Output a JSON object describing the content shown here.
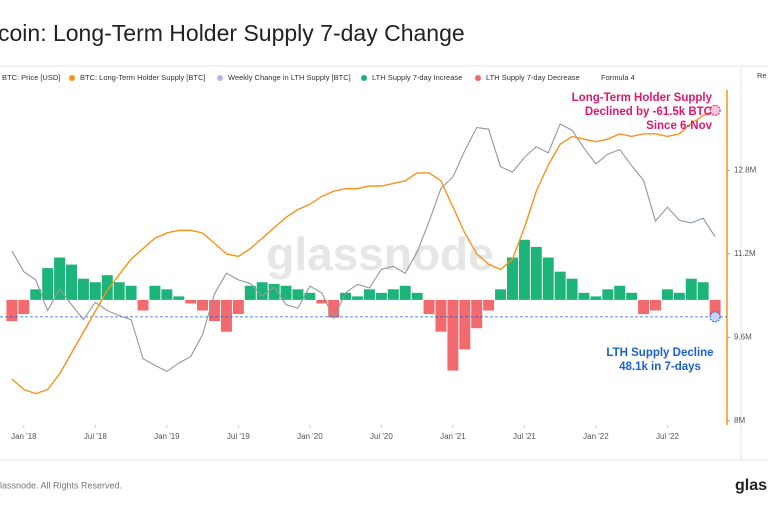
{
  "chart_data": {
    "type": "line",
    "title": "coin: Long-Term Holder Supply 7-day Change",
    "side_panel_label": "Re",
    "watermark": "glassnode",
    "footer": "lassnode. All Rights Reserved.",
    "logo": "glass",
    "x": [
      "2017-12",
      "2018-01",
      "2018-02",
      "2018-03",
      "2018-04",
      "2018-05",
      "2018-06",
      "2018-07",
      "2018-08",
      "2018-09",
      "2018-10",
      "2018-11",
      "2018-12",
      "2019-01",
      "2019-02",
      "2019-03",
      "2019-04",
      "2019-05",
      "2019-06",
      "2019-07",
      "2019-08",
      "2019-09",
      "2019-10",
      "2019-11",
      "2019-12",
      "2020-01",
      "2020-02",
      "2020-03",
      "2020-04",
      "2020-05",
      "2020-06",
      "2020-07",
      "2020-08",
      "2020-09",
      "2020-10",
      "2020-11",
      "2020-12",
      "2021-01",
      "2021-02",
      "2021-03",
      "2021-04",
      "2021-05",
      "2021-06",
      "2021-07",
      "2021-08",
      "2021-09",
      "2021-10",
      "2021-11",
      "2021-12",
      "2022-01",
      "2022-02",
      "2022-03",
      "2022-04",
      "2022-05",
      "2022-06",
      "2022-07",
      "2022-08",
      "2022-09",
      "2022-10",
      "2022-11"
    ],
    "xlim": [
      "2017-11",
      "2022-12"
    ],
    "xticks": [
      {
        "value": "2018-01",
        "label": "Jan '18"
      },
      {
        "value": "2018-07",
        "label": "Jul '18"
      },
      {
        "value": "2019-01",
        "label": "Jan '19"
      },
      {
        "value": "2019-07",
        "label": "Jul '19"
      },
      {
        "value": "2020-01",
        "label": "Jan '20"
      },
      {
        "value": "2020-07",
        "label": "Jul '20"
      },
      {
        "value": "2021-01",
        "label": "Jan '21"
      },
      {
        "value": "2021-07",
        "label": "Jul '21"
      },
      {
        "value": "2022-01",
        "label": "Jan '22"
      },
      {
        "value": "2022-07",
        "label": "Jul '22"
      }
    ],
    "ylim": [
      1850,
      91000
    ],
    "ylog": true,
    "y2lim": [
      7920000,
      14340000
    ],
    "y2ticks": [
      {
        "value": 8000000,
        "label": "8M"
      },
      {
        "value": 9600000,
        "label": "9.6M"
      },
      {
        "value": 11200000,
        "label": "11.2M"
      },
      {
        "value": 12800000,
        "label": "12.8M"
      }
    ],
    "y3lim": [
      -354000,
      594000
    ],
    "series": [
      {
        "name": "BTC: Price [USD]",
        "color": "#8f989f",
        "values": [
          14000,
          11000,
          10000,
          7000,
          9000,
          7500,
          6300,
          7700,
          7000,
          6600,
          6300,
          4000,
          3700,
          3450,
          3800,
          4100,
          5300,
          8500,
          10800,
          10000,
          9600,
          8300,
          9200,
          7500,
          7200,
          9300,
          8600,
          6400,
          8600,
          9500,
          9100,
          11300,
          11700,
          10800,
          13800,
          19700,
          29000,
          33100,
          45000,
          58800,
          57700,
          37300,
          35000,
          41500,
          47100,
          43800,
          61300,
          57000,
          46300,
          38500,
          43200,
          45500,
          37700,
          31800,
          19800,
          23300,
          20000,
          19400,
          20500,
          16500
        ]
      },
      {
        "name": "BTC: Long-Term Holder Supply [BTC]",
        "color": "#f7931a",
        "axis": "y2",
        "values": [
          8800000,
          8600000,
          8520000,
          8600000,
          8900000,
          9300000,
          9700000,
          10100000,
          10500000,
          10800000,
          11100000,
          11300000,
          11500000,
          11600000,
          11650000,
          11650000,
          11600000,
          11400000,
          11200000,
          11150000,
          11300000,
          11500000,
          11700000,
          11900000,
          12050000,
          12150000,
          12300000,
          12400000,
          12450000,
          12450000,
          12500000,
          12500000,
          12550000,
          12600000,
          12750000,
          12750000,
          12600000,
          12100000,
          11600000,
          11200000,
          11000000,
          10900000,
          11100000,
          11700000,
          12400000,
          12900000,
          13300000,
          13450000,
          13400000,
          13350000,
          13400000,
          13500000,
          13450000,
          13500000,
          13500000,
          13450000,
          13500000,
          13700000,
          13850000,
          13950000
        ]
      },
      {
        "name": "Weekly Change in LTH Supply [BTC]",
        "color": "#b9b2f3",
        "axis": "y3",
        "values": [
          -60000,
          -40000,
          30000,
          90000,
          120000,
          100000,
          60000,
          50000,
          70000,
          50000,
          40000,
          -30000,
          40000,
          30000,
          10000,
          -10000,
          -30000,
          -60000,
          -90000,
          -40000,
          40000,
          50000,
          45000,
          40000,
          30000,
          20000,
          -10000,
          -50000,
          20000,
          10000,
          30000,
          20000,
          30000,
          40000,
          20000,
          -40000,
          -90000,
          -200000,
          -140000,
          -80000,
          -30000,
          30000,
          120000,
          170000,
          150000,
          120000,
          80000,
          60000,
          20000,
          10000,
          30000,
          40000,
          20000,
          -40000,
          -30000,
          30000,
          20000,
          60000,
          50000,
          -48100
        ]
      }
    ],
    "legend_extra": [
      {
        "name": "LTH Supply 7-day Increase",
        "color": "#1db47a"
      },
      {
        "name": "LTH Supply 7-day Decrease",
        "color": "#f26a6d"
      },
      {
        "name": "Formula 4"
      }
    ],
    "annotations": [
      {
        "lines": [
          "Long-Term Holder Supply",
          "Declined by -61.5k BTC",
          "Since 6-Nov"
        ],
        "color": "#e0176f"
      },
      {
        "lines": [
          "LTH Supply Decline",
          "48.1k in 7-days"
        ],
        "color": "#1d5fd0"
      }
    ]
  }
}
